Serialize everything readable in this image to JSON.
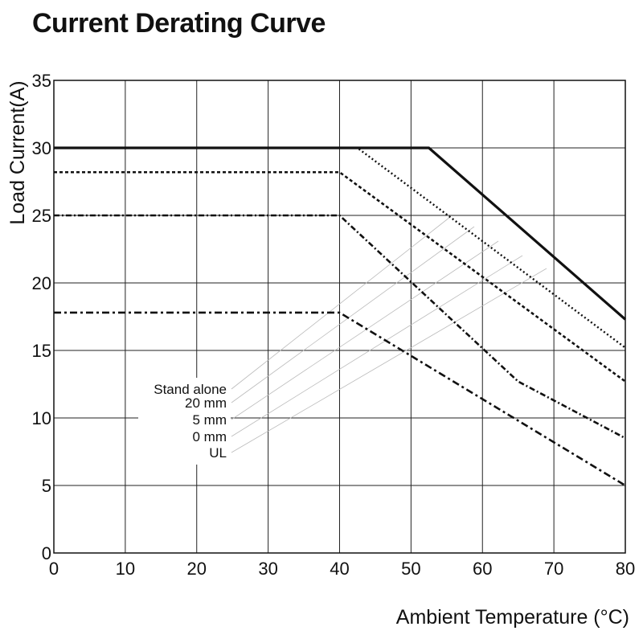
{
  "chart_data": {
    "type": "line",
    "title": "Current Derating Curve",
    "xlabel": "Ambient Temperature (°C)",
    "ylabel": "Load Current(A)",
    "xlim": [
      0,
      80
    ],
    "ylim": [
      0,
      35
    ],
    "x_ticks": [
      0,
      10,
      20,
      30,
      40,
      50,
      60,
      70,
      80
    ],
    "y_ticks": [
      0,
      5,
      10,
      15,
      20,
      25,
      30,
      35
    ],
    "grid": true,
    "series": [
      {
        "name": "Stand alone",
        "style": "solid",
        "x": [
          0,
          52.5,
          80
        ],
        "y": [
          30,
          30,
          17.3
        ]
      },
      {
        "name": "20 mm",
        "style": "dotted",
        "x": [
          0,
          42.5,
          80
        ],
        "y": [
          30,
          30,
          15.2
        ]
      },
      {
        "name": "5 mm",
        "style": "dashed",
        "x": [
          0,
          40,
          80
        ],
        "y": [
          28.2,
          28.2,
          12.7
        ]
      },
      {
        "name": "0 mm",
        "style": "dashdot",
        "x": [
          0,
          40,
          65,
          80
        ],
        "y": [
          25,
          25,
          12.7,
          8.5
        ]
      },
      {
        "name": "UL",
        "style": "dashdot2",
        "x": [
          0,
          40,
          80
        ],
        "y": [
          17.8,
          17.8,
          5
        ]
      }
    ],
    "legend_labels": [
      "Stand alone",
      "20 mm",
      "5 mm",
      "0 mm",
      "UL"
    ]
  }
}
